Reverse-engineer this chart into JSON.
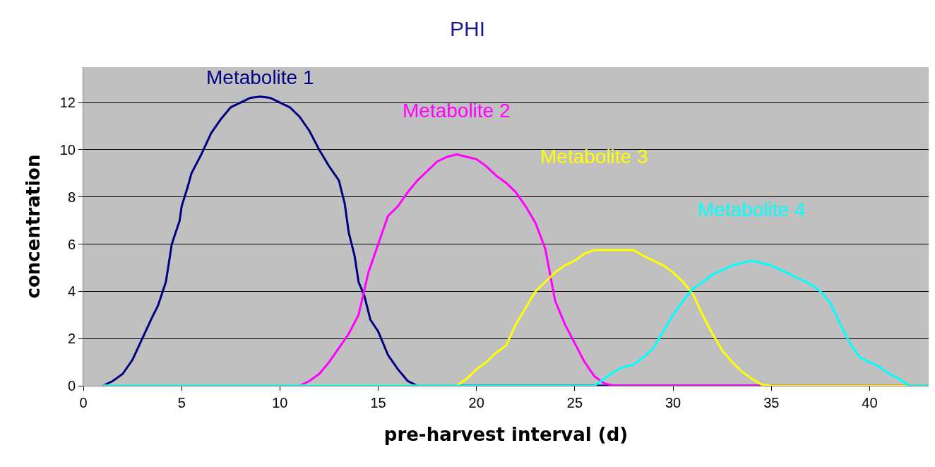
{
  "chart_data": {
    "type": "line",
    "title": "PHI",
    "xlabel": "pre-harvest interval (d)",
    "ylabel": "concentration",
    "xlim": [
      0,
      43
    ],
    "xticks": [
      0,
      5,
      10,
      15,
      20,
      25,
      30,
      35,
      40
    ],
    "ylim": [
      0,
      13.5
    ],
    "yticks": [
      0,
      2,
      4,
      6,
      8,
      10,
      12
    ],
    "grid": "y",
    "legend": false,
    "marker": "none",
    "line_style": "solid",
    "series": [
      {
        "name": "Metabolite 1",
        "color": "#000080",
        "x": [
          1,
          1.5,
          2,
          2.5,
          3,
          3.5,
          3.8,
          4.2,
          4.5,
          4.9,
          5,
          5.3,
          5.5,
          6,
          6.5,
          7,
          7.5,
          8,
          8.5,
          9,
          9.5,
          10,
          10.5,
          11,
          11.5,
          12,
          12.5,
          13,
          13.3,
          13.5,
          13.8,
          14,
          14.3,
          14.6,
          15,
          15.5,
          16,
          16.5,
          17,
          43
        ],
        "values": [
          0,
          0.2,
          0.5,
          1.1,
          2.0,
          2.9,
          3.4,
          4.4,
          6.0,
          7.0,
          7.6,
          8.4,
          9.0,
          9.8,
          10.7,
          11.3,
          11.8,
          12.0,
          12.2,
          12.25,
          12.2,
          12.0,
          11.8,
          11.4,
          10.8,
          10.0,
          9.3,
          8.7,
          7.7,
          6.5,
          5.5,
          4.4,
          3.8,
          2.8,
          2.3,
          1.3,
          0.7,
          0.2,
          0,
          0
        ]
      },
      {
        "name": "Metabolite 2",
        "color": "#ff00ff",
        "x": [
          1,
          11,
          11.5,
          12,
          12.5,
          13,
          13.5,
          14,
          14.5,
          15,
          15.5,
          16,
          16.5,
          17,
          17.5,
          18,
          18.5,
          19,
          19.5,
          20,
          20.5,
          21,
          21.5,
          22,
          22.5,
          23,
          23.5,
          24,
          24.5,
          25,
          25.5,
          26,
          26.5,
          27,
          43
        ],
        "values": [
          0,
          0,
          0.2,
          0.5,
          1.0,
          1.6,
          2.2,
          3.0,
          4.8,
          6.0,
          7.2,
          7.6,
          8.2,
          8.7,
          9.1,
          9.5,
          9.7,
          9.8,
          9.7,
          9.6,
          9.3,
          8.9,
          8.6,
          8.2,
          7.6,
          6.9,
          5.8,
          3.6,
          2.6,
          1.8,
          1.0,
          0.4,
          0.1,
          0,
          0
        ]
      },
      {
        "name": "Metabolite 3",
        "color": "#ffff00",
        "x": [
          1,
          19,
          19.5,
          20,
          20.5,
          21,
          21.5,
          22,
          22.5,
          23,
          23.5,
          24,
          24.5,
          25,
          25.5,
          26,
          28,
          28.5,
          29,
          29.5,
          30,
          30.5,
          31,
          31.5,
          32,
          32.5,
          33,
          33.5,
          34,
          34.5,
          35,
          43
        ],
        "values": [
          0,
          0,
          0.3,
          0.7,
          1.0,
          1.4,
          1.7,
          2.6,
          3.3,
          4.0,
          4.4,
          4.8,
          5.1,
          5.3,
          5.6,
          5.75,
          5.75,
          5.5,
          5.3,
          5.1,
          4.8,
          4.4,
          3.9,
          3.0,
          2.2,
          1.5,
          1.0,
          0.6,
          0.3,
          0.05,
          0,
          0
        ]
      },
      {
        "name": "Metabolite 4",
        "color": "#00ffff",
        "x": [
          1,
          26,
          26.5,
          27,
          27.5,
          28,
          28.5,
          29,
          29.5,
          30,
          30.5,
          31,
          31.5,
          32,
          32.5,
          33,
          33.5,
          34,
          34.5,
          35,
          35.5,
          36,
          36.5,
          37,
          37.5,
          38,
          38.5,
          39,
          39.5,
          40,
          40.5,
          41,
          41.5,
          42,
          43
        ],
        "values": [
          0,
          0,
          0.3,
          0.6,
          0.8,
          0.9,
          1.2,
          1.6,
          2.3,
          3.0,
          3.6,
          4.1,
          4.4,
          4.7,
          4.9,
          5.1,
          5.2,
          5.3,
          5.2,
          5.1,
          4.9,
          4.7,
          4.5,
          4.3,
          4.0,
          3.5,
          2.6,
          1.8,
          1.2,
          1.0,
          0.8,
          0.5,
          0.3,
          0,
          0
        ]
      }
    ]
  }
}
